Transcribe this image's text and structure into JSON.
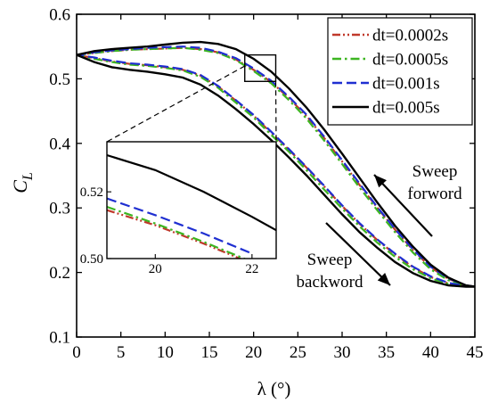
{
  "chart_data": {
    "type": "line",
    "xlabel": "λ (°)",
    "ylabel_main": "C",
    "ylabel_sub": "L",
    "xlim": [
      0,
      45
    ],
    "ylim": [
      0.1,
      0.6
    ],
    "xticks": [
      0,
      5,
      10,
      15,
      20,
      25,
      30,
      35,
      40,
      45
    ],
    "yticks": [
      0.1,
      0.2,
      0.3,
      0.4,
      0.5,
      0.6
    ],
    "ytick_labels": [
      "0.1",
      "0.2",
      "0.3",
      "0.4",
      "0.5",
      "0.6"
    ],
    "legend_position": "top-right",
    "series": [
      {
        "name": "dt=0.0002s",
        "color": "#c0392b",
        "dash": "dashdotdot",
        "forward": [
          [
            0,
            0.537
          ],
          [
            2,
            0.54
          ],
          [
            4,
            0.543
          ],
          [
            6,
            0.545
          ],
          [
            8,
            0.546
          ],
          [
            10,
            0.547
          ],
          [
            12,
            0.548
          ],
          [
            14,
            0.546
          ],
          [
            16,
            0.541
          ],
          [
            18,
            0.53
          ],
          [
            20,
            0.514
          ],
          [
            22,
            0.495
          ],
          [
            24,
            0.47
          ],
          [
            26,
            0.442
          ],
          [
            28,
            0.408
          ],
          [
            30,
            0.372
          ],
          [
            32,
            0.335
          ],
          [
            34,
            0.3
          ],
          [
            36,
            0.266
          ],
          [
            38,
            0.235
          ],
          [
            40,
            0.208
          ],
          [
            42,
            0.19
          ],
          [
            44,
            0.18
          ],
          [
            45,
            0.178
          ]
        ],
        "backward": [
          [
            0,
            0.537
          ],
          [
            2,
            0.532
          ],
          [
            4,
            0.527
          ],
          [
            6,
            0.523
          ],
          [
            8,
            0.521
          ],
          [
            10,
            0.518
          ],
          [
            12,
            0.514
          ],
          [
            14,
            0.505
          ],
          [
            16,
            0.488
          ],
          [
            18,
            0.466
          ],
          [
            20,
            0.443
          ],
          [
            22,
            0.416
          ],
          [
            24,
            0.39
          ],
          [
            26,
            0.362
          ],
          [
            28,
            0.333
          ],
          [
            30,
            0.303
          ],
          [
            32,
            0.275
          ],
          [
            34,
            0.25
          ],
          [
            36,
            0.228
          ],
          [
            38,
            0.208
          ],
          [
            40,
            0.193
          ],
          [
            42,
            0.183
          ],
          [
            44,
            0.179
          ],
          [
            45,
            0.178
          ]
        ]
      },
      {
        "name": "dt=0.0005s",
        "color": "#3cb521",
        "dash": "dashdot",
        "forward": [
          [
            0,
            0.537
          ],
          [
            2,
            0.54
          ],
          [
            4,
            0.543
          ],
          [
            6,
            0.545
          ],
          [
            8,
            0.546
          ],
          [
            10,
            0.547
          ],
          [
            12,
            0.548
          ],
          [
            14,
            0.545
          ],
          [
            16,
            0.54
          ],
          [
            18,
            0.529
          ],
          [
            20,
            0.512
          ],
          [
            22,
            0.493
          ],
          [
            24,
            0.467
          ],
          [
            26,
            0.438
          ],
          [
            28,
            0.404
          ],
          [
            30,
            0.368
          ],
          [
            32,
            0.331
          ],
          [
            34,
            0.296
          ],
          [
            36,
            0.262
          ],
          [
            38,
            0.231
          ],
          [
            40,
            0.205
          ],
          [
            42,
            0.188
          ],
          [
            44,
            0.179
          ],
          [
            45,
            0.178
          ]
        ],
        "backward": [
          [
            0,
            0.537
          ],
          [
            2,
            0.531
          ],
          [
            4,
            0.526
          ],
          [
            6,
            0.522
          ],
          [
            8,
            0.52
          ],
          [
            10,
            0.517
          ],
          [
            12,
            0.513
          ],
          [
            14,
            0.503
          ],
          [
            16,
            0.486
          ],
          [
            18,
            0.463
          ],
          [
            20,
            0.44
          ],
          [
            22,
            0.413
          ],
          [
            24,
            0.387
          ],
          [
            26,
            0.358
          ],
          [
            28,
            0.328
          ],
          [
            30,
            0.299
          ],
          [
            32,
            0.271
          ],
          [
            34,
            0.246
          ],
          [
            36,
            0.224
          ],
          [
            38,
            0.205
          ],
          [
            40,
            0.191
          ],
          [
            42,
            0.182
          ],
          [
            44,
            0.179
          ],
          [
            45,
            0.178
          ]
        ]
      },
      {
        "name": "dt=0.001s",
        "color": "#1f2fd1",
        "dash": "dash",
        "forward": [
          [
            0,
            0.537
          ],
          [
            2,
            0.541
          ],
          [
            4,
            0.544
          ],
          [
            6,
            0.546
          ],
          [
            8,
            0.548
          ],
          [
            10,
            0.549
          ],
          [
            12,
            0.55
          ],
          [
            14,
            0.548
          ],
          [
            16,
            0.542
          ],
          [
            18,
            0.532
          ],
          [
            20,
            0.516
          ],
          [
            22,
            0.497
          ],
          [
            24,
            0.472
          ],
          [
            26,
            0.444
          ],
          [
            28,
            0.41
          ],
          [
            30,
            0.374
          ],
          [
            32,
            0.337
          ],
          [
            34,
            0.301
          ],
          [
            36,
            0.267
          ],
          [
            38,
            0.236
          ],
          [
            40,
            0.209
          ],
          [
            42,
            0.191
          ],
          [
            44,
            0.18
          ],
          [
            45,
            0.178
          ]
        ],
        "backward": [
          [
            0,
            0.537
          ],
          [
            2,
            0.533
          ],
          [
            4,
            0.528
          ],
          [
            6,
            0.524
          ],
          [
            8,
            0.522
          ],
          [
            10,
            0.519
          ],
          [
            12,
            0.515
          ],
          [
            14,
            0.506
          ],
          [
            16,
            0.489
          ],
          [
            18,
            0.467
          ],
          [
            20,
            0.444
          ],
          [
            22,
            0.418
          ],
          [
            24,
            0.391
          ],
          [
            26,
            0.363
          ],
          [
            28,
            0.334
          ],
          [
            30,
            0.304
          ],
          [
            32,
            0.276
          ],
          [
            34,
            0.251
          ],
          [
            36,
            0.229
          ],
          [
            38,
            0.209
          ],
          [
            40,
            0.194
          ],
          [
            42,
            0.184
          ],
          [
            44,
            0.179
          ],
          [
            45,
            0.178
          ]
        ]
      },
      {
        "name": "dt=0.005s",
        "color": "#000000",
        "dash": "solid",
        "forward": [
          [
            0,
            0.537
          ],
          [
            2,
            0.543
          ],
          [
            4,
            0.546
          ],
          [
            6,
            0.548
          ],
          [
            8,
            0.55
          ],
          [
            10,
            0.553
          ],
          [
            12,
            0.556
          ],
          [
            14,
            0.557
          ],
          [
            16,
            0.554
          ],
          [
            18,
            0.546
          ],
          [
            20,
            0.531
          ],
          [
            22,
            0.511
          ],
          [
            24,
            0.485
          ],
          [
            26,
            0.455
          ],
          [
            28,
            0.421
          ],
          [
            30,
            0.384
          ],
          [
            32,
            0.346
          ],
          [
            34,
            0.308
          ],
          [
            36,
            0.272
          ],
          [
            38,
            0.24
          ],
          [
            40,
            0.212
          ],
          [
            42,
            0.192
          ],
          [
            44,
            0.18
          ],
          [
            45,
            0.178
          ]
        ],
        "backward": [
          [
            0,
            0.537
          ],
          [
            2,
            0.526
          ],
          [
            4,
            0.518
          ],
          [
            6,
            0.514
          ],
          [
            8,
            0.511
          ],
          [
            10,
            0.507
          ],
          [
            12,
            0.502
          ],
          [
            14,
            0.491
          ],
          [
            16,
            0.474
          ],
          [
            18,
            0.453
          ],
          [
            20,
            0.43
          ],
          [
            22,
            0.405
          ],
          [
            24,
            0.378
          ],
          [
            26,
            0.35
          ],
          [
            28,
            0.32
          ],
          [
            30,
            0.29
          ],
          [
            32,
            0.262
          ],
          [
            34,
            0.238
          ],
          [
            36,
            0.216
          ],
          [
            38,
            0.199
          ],
          [
            40,
            0.187
          ],
          [
            42,
            0.18
          ],
          [
            44,
            0.178
          ],
          [
            45,
            0.178
          ]
        ]
      }
    ],
    "inset": {
      "xlim": [
        19,
        22.5
      ],
      "ylim": [
        0.5,
        0.535
      ],
      "xticks": [
        20,
        22
      ],
      "yticks": [
        0.5,
        0.52
      ],
      "ytick_labels": [
        "0.50",
        "0.52"
      ],
      "zoom_box": {
        "xlim": [
          19,
          22.5
        ],
        "ylim": [
          0.496,
          0.537
        ]
      },
      "series": [
        {
          "name": "dt=0.0002s",
          "points": [
            [
              19,
              0.5145
            ],
            [
              20,
              0.51
            ],
            [
              21,
              0.5045
            ],
            [
              22,
              0.4985
            ]
          ]
        },
        {
          "name": "dt=0.0005s",
          "points": [
            [
              19,
              0.5155
            ],
            [
              20,
              0.5105
            ],
            [
              21,
              0.505
            ],
            [
              22,
              0.499
            ]
          ]
        },
        {
          "name": "dt=0.001s",
          "points": [
            [
              19,
              0.518
            ],
            [
              20,
              0.513
            ],
            [
              21,
              0.5075
            ],
            [
              22,
              0.5015
            ]
          ]
        },
        {
          "name": "dt=0.005s",
          "points": [
            [
              19,
              0.531
            ],
            [
              20,
              0.5265
            ],
            [
              21,
              0.52
            ],
            [
              22,
              0.5125
            ],
            [
              22.5,
              0.5085
            ]
          ]
        }
      ]
    },
    "annotations": {
      "forward_line1": "Sweep",
      "forward_line2": "forword",
      "backward_line1": "Sweep",
      "backward_line2": "backword"
    }
  }
}
